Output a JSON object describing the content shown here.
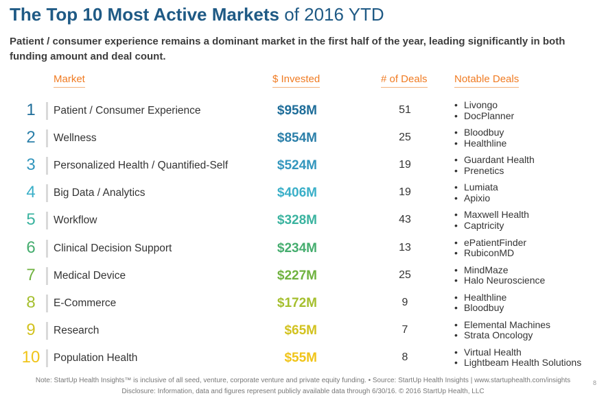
{
  "header": {
    "title_bold": "The Top 10 Most Active Markets",
    "title_light": " of 2016 YTD",
    "subtitle": "Patient / consumer experience remains a dominant market in the first half of the year, leading significantly in both funding amount and deal count."
  },
  "columns": {
    "market": "Market",
    "invested": "$ Invested",
    "deals": "# of Deals",
    "notable": "Notable Deals"
  },
  "rows": [
    {
      "rank": "1",
      "market": "Patient / Consumer Experience",
      "invested": "$958M",
      "deals": "51",
      "notable": [
        "Livongo",
        "DocPlanner"
      ],
      "color": "#1e6d99"
    },
    {
      "rank": "2",
      "market": "Wellness",
      "invested": "$854M",
      "deals": "25",
      "notable": [
        "Bloodbuy",
        "Healthline"
      ],
      "color": "#2b7fa9"
    },
    {
      "rank": "3",
      "market": "Personalized Health / Quantified-Self",
      "invested": "$524M",
      "deals": "19",
      "notable": [
        "Guardant Health",
        "Prenetics"
      ],
      "color": "#3396bd"
    },
    {
      "rank": "4",
      "market": "Big Data / Analytics",
      "invested": "$406M",
      "deals": "19",
      "notable": [
        "Lumiata",
        "Apixio"
      ],
      "color": "#3aafc8"
    },
    {
      "rank": "5",
      "market": "Workflow",
      "invested": "$328M",
      "deals": "43",
      "notable": [
        "Maxwell Health",
        "Captricity"
      ],
      "color": "#3ab39f"
    },
    {
      "rank": "6",
      "market": "Clinical Decision Support",
      "invested": "$234M",
      "deals": "13",
      "notable": [
        "ePatientFinder",
        "RubiconMD"
      ],
      "color": "#45ad6e"
    },
    {
      "rank": "7",
      "market": "Medical Device",
      "invested": "$227M",
      "deals": "25",
      "notable": [
        "MindMaze",
        "Halo Neuroscience"
      ],
      "color": "#6fb23f"
    },
    {
      "rank": "8",
      "market": "E-Commerce",
      "invested": "$172M",
      "deals": "9",
      "notable": [
        "Healthline",
        "Bloodbuy"
      ],
      "color": "#a5bf2e"
    },
    {
      "rank": "9",
      "market": "Research",
      "invested": "$65M",
      "deals": "7",
      "notable": [
        "Elemental Machines",
        "Strata Oncology"
      ],
      "color": "#d2c21f"
    },
    {
      "rank": "10",
      "market": "Population Health",
      "invested": "$55M",
      "deals": "8",
      "notable": [
        "Virtual Health",
        "Lightbeam Health Solutions"
      ],
      "color": "#f0c419"
    }
  ],
  "footer": {
    "note": "Note: StartUp Health Insights™ is inclusive of all seed, venture, corporate venture and private equity funding. • Source: StartUp Health Insights | www.startuphealth.com/insights",
    "disclosure": "Disclosure: Information, data and figures represent publicly available data through 6/30/16. © 2016 StartUp Health, LLC",
    "page_number": "8"
  }
}
